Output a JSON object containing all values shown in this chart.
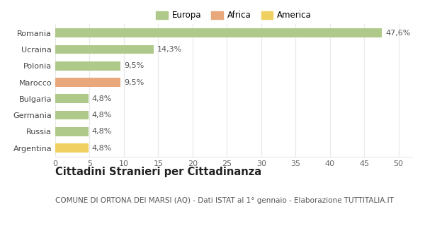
{
  "categories": [
    "Romania",
    "Ucraina",
    "Polonia",
    "Marocco",
    "Bulgaria",
    "Germania",
    "Russia",
    "Argentina"
  ],
  "values": [
    47.6,
    14.3,
    9.5,
    9.5,
    4.8,
    4.8,
    4.8,
    4.8
  ],
  "labels": [
    "47,6%",
    "14,3%",
    "9,5%",
    "9,5%",
    "4,8%",
    "4,8%",
    "4,8%",
    "4,8%"
  ],
  "colors": [
    "#aec98a",
    "#aec98a",
    "#aec98a",
    "#e8a87c",
    "#aec98a",
    "#aec98a",
    "#aec98a",
    "#f0d060"
  ],
  "legend": [
    {
      "label": "Europa",
      "color": "#aec98a"
    },
    {
      "label": "Africa",
      "color": "#e8a87c"
    },
    {
      "label": "America",
      "color": "#f0d060"
    }
  ],
  "title": "Cittadini Stranieri per Cittadinanza",
  "subtitle": "COMUNE DI ORTONA DEI MARSI (AQ) - Dati ISTAT al 1° gennaio - Elaborazione TUTTITALIA.IT",
  "xlim": [
    0,
    52
  ],
  "xticks": [
    0,
    5,
    10,
    15,
    20,
    25,
    30,
    35,
    40,
    45,
    50
  ],
  "background_color": "#ffffff",
  "grid_color": "#e8e8e8",
  "bar_height": 0.55,
  "label_fontsize": 8.0,
  "title_fontsize": 10.5,
  "subtitle_fontsize": 7.5,
  "tick_fontsize": 8.0,
  "legend_fontsize": 8.5
}
